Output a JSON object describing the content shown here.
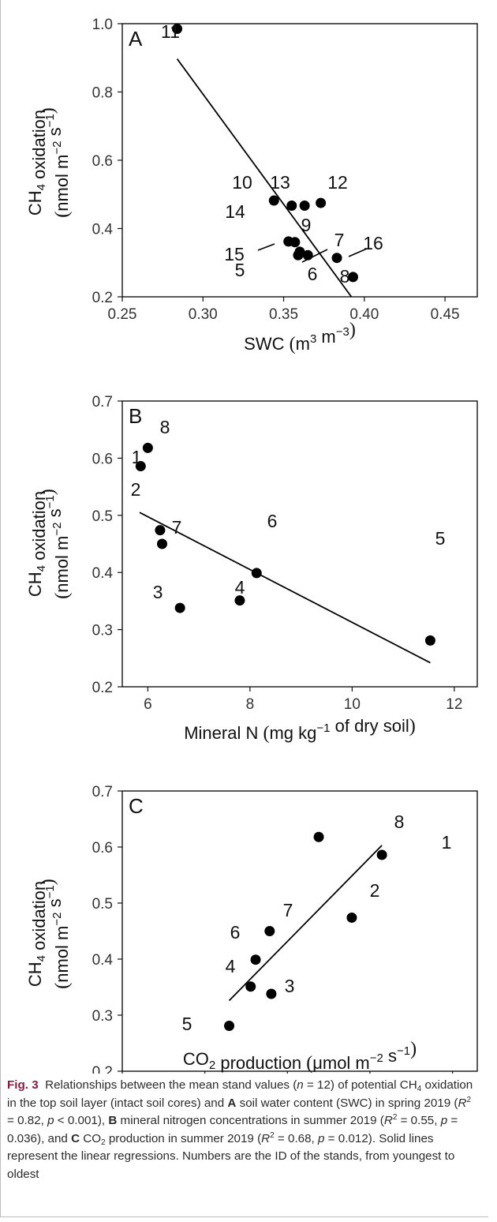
{
  "colors": {
    "points": "#000000",
    "axis": "#000000",
    "caption_label": "#8a1c3f"
  },
  "figure_label": "Fig. 3",
  "caption": {
    "t1": "Relationships between the mean stand values (",
    "n_sym": "n",
    "t2": " = 12) of potential CH",
    "sub4": "4",
    "t3": " oxidation in the top soil layer (intact soil cores) and ",
    "lA": "A",
    "t4": " soil water content (SWC) in spring 2019 (",
    "r1": "R",
    "sup2a": "2",
    "t5": " = 0.82, ",
    "p1": "p",
    "t6": " < 0.001), ",
    "lB": "B",
    "t7": " mineral nitrogen concentrations in summer 2019 (",
    "r2": "R",
    "sup2b": "2",
    "t8": " = 0.55, ",
    "p2": "p",
    "t9": " = 0.036), and ",
    "lC": "C",
    "t10": " CO",
    "sub2": "2",
    "t11": " production in summer 2019 (",
    "r3": "R",
    "sup2c": "2",
    "t12": " = 0.68, ",
    "p3": "p",
    "t13": " = 0.012). Solid lines represent the linear regressions. Numbers are the ID of the stands, from youngest to oldest"
  },
  "chart_data": [
    {
      "type": "scatter",
      "panel": "A",
      "xlabel": "SWC (m³ m⁻³)",
      "ylabel": "CH₄ oxidation (nmol m⁻² s⁻¹)",
      "xlim": [
        0.25,
        0.47
      ],
      "ylim": [
        0.2,
        1.0
      ],
      "xticks": [
        "0.25",
        "0.30",
        "0.35",
        "0.40",
        "0.45"
      ],
      "yticks": [
        "0.2",
        "0.4",
        "0.6",
        "0.8",
        "1.0"
      ],
      "points": [
        {
          "id": "11",
          "x": 0.284,
          "y": 0.985
        },
        {
          "id": "10",
          "x": 0.344,
          "y": 0.482
        },
        {
          "id": "14",
          "x": 0.355,
          "y": 0.467
        },
        {
          "id": "13",
          "x": 0.363,
          "y": 0.467
        },
        {
          "id": "12",
          "x": 0.373,
          "y": 0.475
        },
        {
          "id": "15",
          "x": 0.353,
          "y": 0.362
        },
        {
          "id": "9",
          "x": 0.357,
          "y": 0.36
        },
        {
          "id": "5",
          "x": 0.359,
          "y": 0.322
        },
        {
          "id": "6",
          "x": 0.365,
          "y": 0.322
        },
        {
          "id": "7",
          "x": 0.36,
          "y": 0.332
        },
        {
          "id": "16",
          "x": 0.383,
          "y": 0.314
        },
        {
          "id": "8",
          "x": 0.393,
          "y": 0.258
        }
      ],
      "regression": {
        "x": [
          0.284,
          0.392
        ],
        "y": [
          0.897,
          0.2
        ]
      }
    },
    {
      "type": "scatter",
      "panel": "B",
      "xlabel": "Mineral N (mg kg⁻¹ of dry soil)",
      "ylabel": "CH₄ oxidation (nmol m⁻² s⁻¹)",
      "xlim": [
        5.5,
        12.45
      ],
      "ylim": [
        0.2,
        0.7
      ],
      "xticks": [
        "6",
        "8",
        "10",
        "12"
      ],
      "yticks": [
        "0.2",
        "0.3",
        "0.4",
        "0.5",
        "0.6",
        "0.7"
      ],
      "points": [
        {
          "id": "8",
          "x": 6.0,
          "y": 0.618
        },
        {
          "id": "1",
          "x": 5.86,
          "y": 0.586
        },
        {
          "id": "2",
          "x": 6.24,
          "y": 0.474
        },
        {
          "id": "7",
          "x": 6.28,
          "y": 0.45
        },
        {
          "id": "6",
          "x": 8.13,
          "y": 0.399
        },
        {
          "id": "4",
          "x": 7.8,
          "y": 0.351
        },
        {
          "id": "3",
          "x": 6.63,
          "y": 0.338
        },
        {
          "id": "5",
          "x": 11.53,
          "y": 0.281
        }
      ],
      "regression": {
        "x": [
          5.84,
          11.53
        ],
        "y": [
          0.505,
          0.242
        ]
      }
    },
    {
      "type": "scatter",
      "panel": "C",
      "xlabel": "CO₂ production (μmol m⁻² s⁻¹)",
      "ylabel": "CH₄ oxidation (nmol m⁻² s⁻¹)",
      "xlim": [
        0.2,
        1.06
      ],
      "ylim": [
        0.2,
        0.7
      ],
      "xticks": [
        "0.2",
        "0.4",
        "0.6",
        "0.8",
        "1.0"
      ],
      "yticks": [
        "0.2",
        "0.3",
        "0.4",
        "0.5",
        "0.6",
        "0.7"
      ],
      "points": [
        {
          "id": "8",
          "x": 0.676,
          "y": 0.618
        },
        {
          "id": "1",
          "x": 0.829,
          "y": 0.586
        },
        {
          "id": "2",
          "x": 0.756,
          "y": 0.474
        },
        {
          "id": "7",
          "x": 0.557,
          "y": 0.45
        },
        {
          "id": "6",
          "x": 0.523,
          "y": 0.399
        },
        {
          "id": "4",
          "x": 0.511,
          "y": 0.351
        },
        {
          "id": "3",
          "x": 0.561,
          "y": 0.338
        },
        {
          "id": "5",
          "x": 0.459,
          "y": 0.281
        }
      ],
      "regression": {
        "x": [
          0.459,
          0.829
        ],
        "y": [
          0.326,
          0.603
        ]
      }
    }
  ]
}
